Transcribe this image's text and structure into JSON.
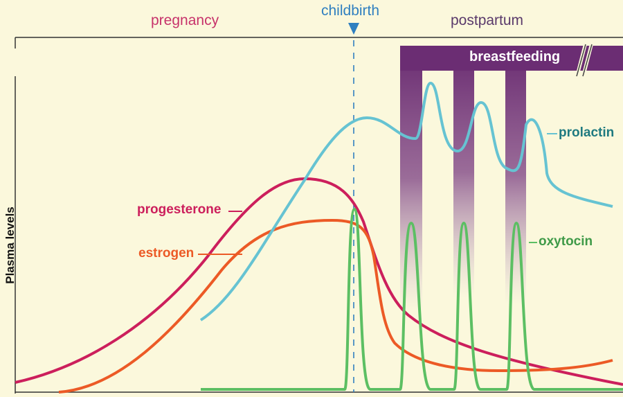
{
  "phases": {
    "pregnancy": "pregnancy",
    "childbirth": "childbirth",
    "postpartum": "postpartum"
  },
  "breastfeeding_label": "breastfeeding",
  "y_axis_label": "Plasma levels",
  "curves": {
    "progesterone": {
      "label": "progesterone",
      "color": "#cc1f5c"
    },
    "estrogen": {
      "label": "estrogen",
      "color": "#ec5a26"
    },
    "prolactin": {
      "label": "prolactin",
      "color": "#66c3d2"
    },
    "oxytocin": {
      "label": "oxytocin",
      "color": "#5cbf63"
    }
  },
  "colors": {
    "background": "#fbf8dc",
    "breastfeeding_bar": "#6b2d73",
    "childbirth_marker": "#2f7fc0",
    "pregnancy_text": "#c7336b",
    "postpartum_text": "#5a3a6b",
    "axis": "#333333"
  }
}
